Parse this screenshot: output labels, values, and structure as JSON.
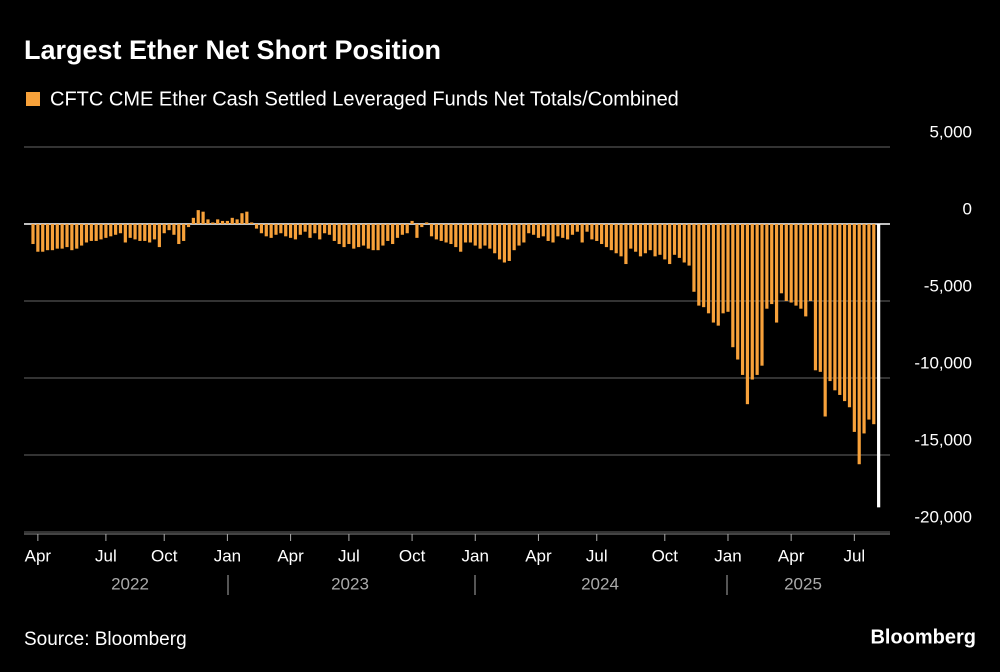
{
  "chart_data": {
    "type": "bar",
    "title": "Largest Ether Net Short Position",
    "series": [
      {
        "name": "CFTC CME Ether Cash Settled Leveraged Funds Net Totals/Combined",
        "color": "#f7a13a",
        "last_color": "#ffffff",
        "values": [
          -1300,
          -1800,
          -1800,
          -1700,
          -1700,
          -1600,
          -1600,
          -1500,
          -1700,
          -1600,
          -1400,
          -1200,
          -1100,
          -1100,
          -1000,
          -900,
          -800,
          -700,
          -600,
          -1200,
          -900,
          -1000,
          -1100,
          -1100,
          -1200,
          -1000,
          -1500,
          -600,
          -400,
          -700,
          -1300,
          -1100,
          -200,
          400,
          900,
          800,
          300,
          100,
          300,
          200,
          200,
          400,
          300,
          700,
          800,
          100,
          -300,
          -600,
          -800,
          -900,
          -700,
          -600,
          -800,
          -900,
          -1000,
          -700,
          -500,
          -900,
          -600,
          -1000,
          -600,
          -700,
          -1100,
          -1300,
          -1500,
          -1300,
          -1600,
          -1500,
          -1400,
          -1600,
          -1700,
          -1700,
          -1400,
          -1100,
          -1300,
          -900,
          -700,
          -600,
          200,
          -900,
          -200,
          100,
          -800,
          -1000,
          -1100,
          -1200,
          -1300,
          -1500,
          -1800,
          -1200,
          -1200,
          -1400,
          -1600,
          -1400,
          -1600,
          -1900,
          -2300,
          -2500,
          -2400,
          -1700,
          -1400,
          -1200,
          -600,
          -700,
          -900,
          -800,
          -1100,
          -1200,
          -800,
          -900,
          -1000,
          -700,
          -500,
          -1200,
          -500,
          -1000,
          -1100,
          -1300,
          -1500,
          -1700,
          -1900,
          -2100,
          -2600,
          -1600,
          -1800,
          -2100,
          -1900,
          -1700,
          -2100,
          -2000,
          -2300,
          -2600,
          -2000,
          -2200,
          -2500,
          -2700,
          -4400,
          -5300,
          -5400,
          -5800,
          -6400,
          -6600,
          -5800,
          -5700,
          -8000,
          -8800,
          -9800,
          -11700,
          -10100,
          -9800,
          -9200,
          -5500,
          -5200,
          -6400,
          -4500,
          -5000,
          -5100,
          -5300,
          -5500,
          -6000,
          -5000,
          -9500,
          -9600,
          -12500,
          -10200,
          -10800,
          -11100,
          -11500,
          -11900,
          -13500,
          -15600,
          -13600,
          -12700,
          -13000,
          -18400
        ]
      }
    ],
    "categories": [
      null,
      "Apr",
      null,
      null,
      null,
      null,
      null,
      null,
      null,
      null,
      null,
      null,
      null,
      null,
      null,
      "Jul",
      null,
      null,
      null,
      null,
      null,
      null,
      null,
      null,
      null,
      null,
      null,
      "Oct",
      null,
      null,
      null,
      null,
      null,
      null,
      null,
      null,
      null,
      null,
      null,
      null,
      "Jan",
      null,
      null,
      null,
      null,
      null,
      null,
      null,
      null,
      null,
      null,
      null,
      null,
      "Apr",
      null,
      null,
      null,
      null,
      null,
      null,
      null,
      null,
      null,
      null,
      null,
      "Jul",
      null,
      null,
      null,
      null,
      null,
      null,
      null,
      null,
      null,
      null,
      null,
      null,
      "Oct",
      null,
      null,
      null,
      null,
      null,
      null,
      null,
      null,
      null,
      null,
      null,
      null,
      "Jan",
      null,
      null,
      null,
      null,
      null,
      null,
      null,
      null,
      null,
      null,
      null,
      null,
      "Apr",
      null,
      null,
      null,
      null,
      null,
      null,
      null,
      null,
      null,
      null,
      null,
      "Jul",
      null,
      null,
      null,
      null,
      null,
      null,
      null,
      null,
      null,
      null,
      null,
      null,
      null,
      "Oct",
      null,
      null,
      null,
      null,
      null,
      null,
      null,
      null,
      null,
      null,
      null,
      null,
      "Jan",
      null,
      null,
      null,
      null,
      null,
      null,
      null,
      null,
      null,
      null,
      null,
      null,
      "Apr",
      null,
      null,
      null,
      null,
      null,
      null,
      null,
      null,
      null,
      null,
      null,
      null,
      "Jul",
      null,
      null,
      null,
      null,
      null
    ],
    "years": [
      "2022",
      "2023",
      "2024",
      "2025"
    ],
    "ylim": [
      -20000,
      5000
    ],
    "yticks": [
      {
        "value": 5000,
        "label": "5,000"
      },
      0,
      {
        "value": -5000,
        "label": "-5,000"
      },
      {
        "value": -10000,
        "label": "-10,000"
      },
      {
        "value": -15000,
        "label": "-15,000"
      },
      {
        "value": -20000,
        "label": "-20,000"
      }
    ],
    "grid": true,
    "source": "Source: Bloomberg",
    "brand": "Bloomberg"
  }
}
